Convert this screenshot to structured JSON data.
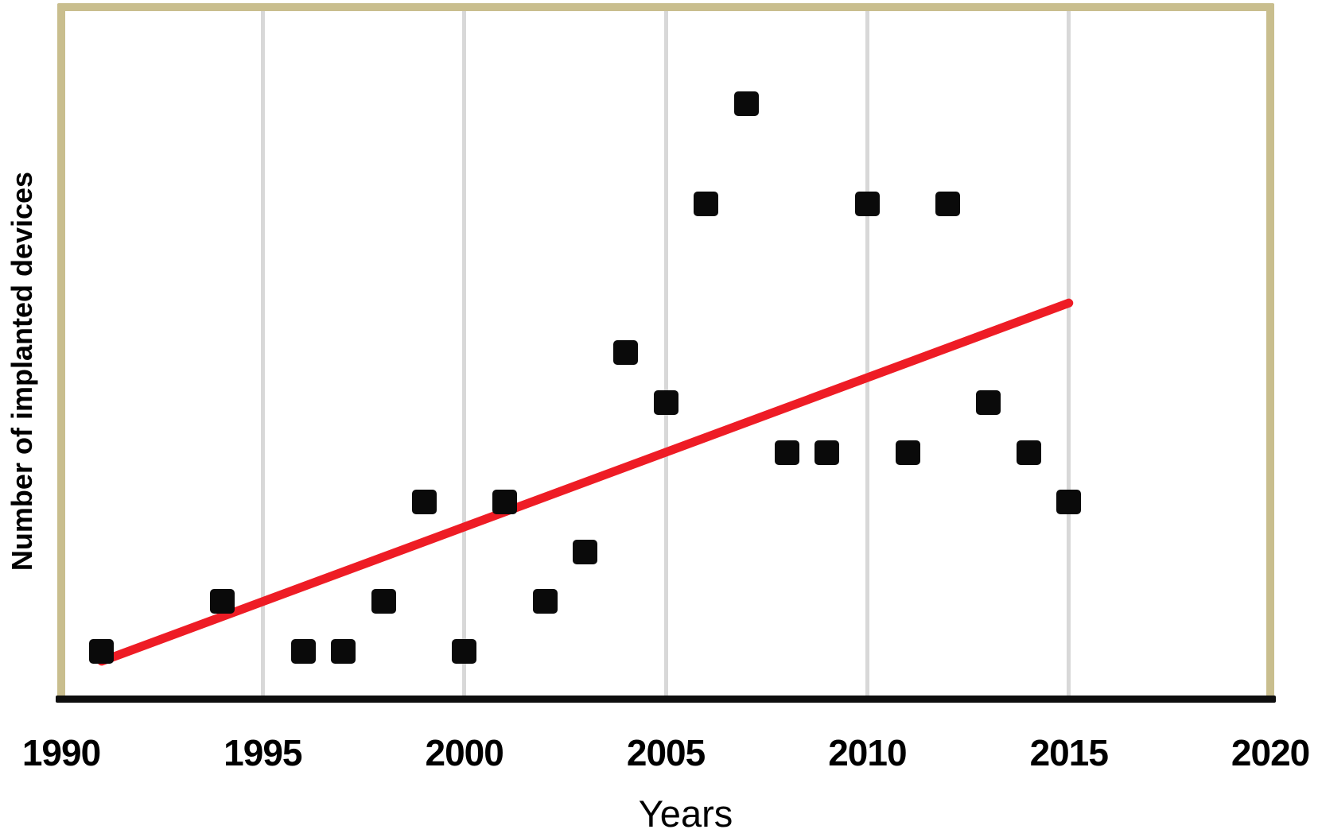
{
  "chart_data": {
    "type": "scatter",
    "title": "",
    "xlabel": "Years",
    "ylabel": "Number of implanted devices",
    "xlim": [
      1990,
      2020
    ],
    "ylim": [
      0,
      13
    ],
    "x_ticks": [
      1990,
      1995,
      2000,
      2005,
      2010,
      2015,
      2020
    ],
    "y_tick_labels": [],
    "grid": "vertical-only",
    "gridline_years": [
      1995,
      2000,
      2005,
      2010,
      2015
    ],
    "marker_style": "black-rounded-square",
    "points": [
      {
        "year": 1991,
        "value": 1
      },
      {
        "year": 1994,
        "value": 2
      },
      {
        "year": 1996,
        "value": 1
      },
      {
        "year": 1997,
        "value": 1
      },
      {
        "year": 1998,
        "value": 2
      },
      {
        "year": 1999,
        "value": 4
      },
      {
        "year": 2000,
        "value": 1
      },
      {
        "year": 2001,
        "value": 4
      },
      {
        "year": 2002,
        "value": 2
      },
      {
        "year": 2003,
        "value": 3
      },
      {
        "year": 2004,
        "value": 7
      },
      {
        "year": 2005,
        "value": 6
      },
      {
        "year": 2006,
        "value": 10
      },
      {
        "year": 2007,
        "value": 12
      },
      {
        "year": 2008,
        "value": 5
      },
      {
        "year": 2009,
        "value": 5
      },
      {
        "year": 2010,
        "value": 10
      },
      {
        "year": 2011,
        "value": 5
      },
      {
        "year": 2012,
        "value": 10
      },
      {
        "year": 2013,
        "value": 6
      },
      {
        "year": 2014,
        "value": 5
      },
      {
        "year": 2015,
        "value": 4
      }
    ],
    "trendline": {
      "start": {
        "year": 1991,
        "value": 0.8
      },
      "end": {
        "year": 2015,
        "value": 8.0
      }
    }
  },
  "colors": {
    "background": "#ffffff",
    "text": "#000000",
    "marker": "#0a0a0a",
    "trendline": "#ee1c25",
    "gridline": "#d8d8d8",
    "plot_border": "#c9be8e",
    "axis_line": "#0e0e0e"
  }
}
